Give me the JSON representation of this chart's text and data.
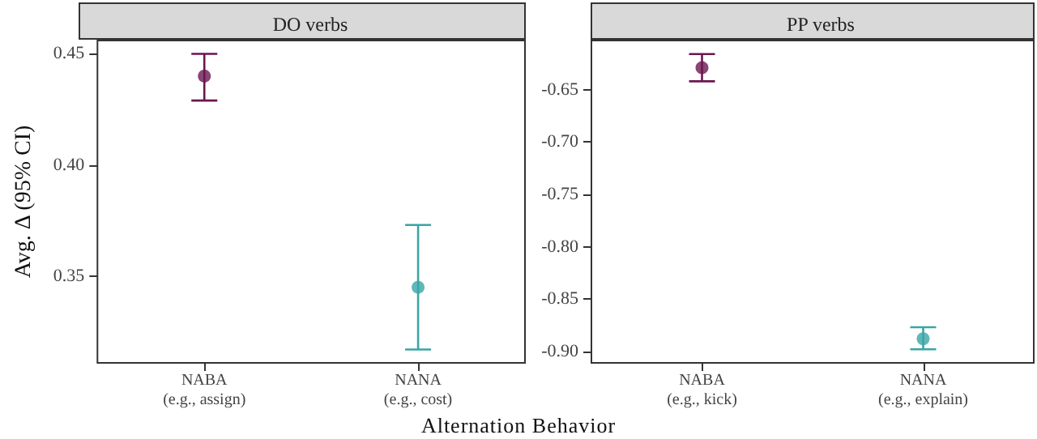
{
  "chart_data": [
    {
      "type": "scatter",
      "title": "DO verbs",
      "ylabel": "Avg. Δ (95% CI)",
      "xlabel": "Alternation Behavior",
      "categories": [
        "NABA\n(e.g., assign)",
        "NANA\n(e.g., cost)"
      ],
      "values": [
        0.44,
        0.345
      ],
      "colors": [
        "#6b1650",
        "#3aa5a5"
      ],
      "errors": [
        [
          0.429,
          0.45
        ],
        [
          0.317,
          0.373
        ]
      ],
      "ylim": [
        0.311,
        0.456
      ],
      "yticks": [
        {
          "value": 0.35,
          "label": "0.35"
        },
        {
          "value": 0.4,
          "label": "0.40"
        },
        {
          "value": 0.45,
          "label": "0.45"
        }
      ],
      "grid": false,
      "marker": "circle",
      "tick_labels": true
    },
    {
      "type": "scatter",
      "title": "PP verbs",
      "categories": [
        "NABA\n(e.g., kick)",
        "NANA\n(e.g., explain)"
      ],
      "values": [
        -0.629,
        -0.888
      ],
      "colors": [
        "#6b1650",
        "#3aa5a5"
      ],
      "errors": [
        [
          -0.642,
          -0.616
        ],
        [
          -0.898,
          -0.877
        ]
      ],
      "ylim": [
        -0.911,
        -0.603
      ],
      "yticks": [
        {
          "value": -0.9,
          "label": "-0.90"
        },
        {
          "value": -0.85,
          "label": "-0.85"
        },
        {
          "value": -0.8,
          "label": "-0.80"
        },
        {
          "value": -0.75,
          "label": "-0.75"
        },
        {
          "value": -0.7,
          "label": "-0.70"
        },
        {
          "value": -0.65,
          "label": "-0.65"
        }
      ],
      "grid": false,
      "marker": "circle",
      "tick_labels": true
    }
  ]
}
